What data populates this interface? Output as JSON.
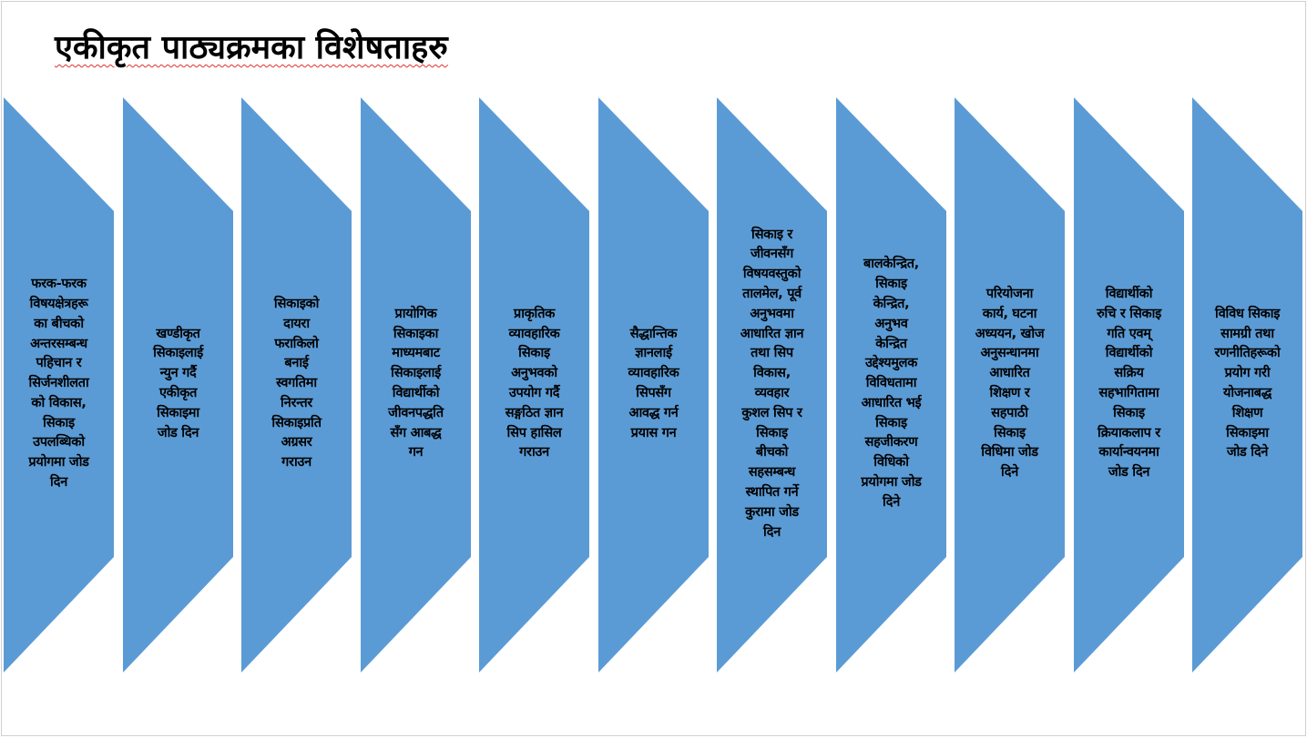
{
  "title": "एकीकृत पाठ्यक्रमका विशेषताहरु",
  "colors": {
    "shape_fill": "#5b9bd5",
    "text": "#000000",
    "spellcheck_underline": "#e03030"
  },
  "items": [
    {
      "lines": [
        "फरक-फरक",
        "विषयक्षेत्रहरू",
        "का बीचको",
        "अन्तरसम्बन्ध",
        "पहिचान र",
        "सिर्जनशीलता",
        "को विकास,",
        "सिकाइ",
        "उपलब्धिको",
        "प्रयोगमा जोड",
        "दिन"
      ]
    },
    {
      "lines": [
        "खण्डीकृत",
        "सिकाइलाई",
        "न्युन गर्दै",
        "एकीकृत",
        "सिकाइमा",
        "जोड दिन"
      ]
    },
    {
      "lines": [
        "सिकाइको",
        "दायरा",
        "फराकिलो",
        "बनाई",
        "स्वगतिमा",
        "निरन्तर",
        "सिकाइप्रति",
        "अग्रसर",
        "गराउन"
      ]
    },
    {
      "lines": [
        "प्रायोगिक",
        "सिकाइका",
        "माध्यमबाट",
        "सिकाइलाई",
        "विद्यार्थीको",
        "जीवनपद्धति",
        "सँग आबद्ध",
        "गन"
      ]
    },
    {
      "lines": [
        "प्राकृतिक",
        "व्यावहारिक",
        "सिकाइ",
        "अनुभवको",
        "उपयोग गर्दै",
        "सङ्गठित ज्ञान",
        "सिप हासिल",
        "गराउन"
      ]
    },
    {
      "lines": [
        "सैद्धान्तिक",
        "ज्ञानलाई",
        "व्यावहारिक",
        "सिपसँग",
        "आवद्ध गर्न",
        "प्रयास गन"
      ]
    },
    {
      "lines": [
        "सिकाइ र",
        "जीवनसँग",
        "विषयवस्तुको",
        "तालमेल, पूर्व",
        "अनुभवमा",
        "आधारित ज्ञान",
        "तथा सिप",
        "विकास,",
        "व्यवहार",
        "कुशल सिप र",
        "सिकाइ",
        "बीचको",
        "सहसम्बन्ध",
        "स्थापित गर्ने",
        "कुरामा जोड",
        "दिन"
      ]
    },
    {
      "lines": [
        "बालकेन्द्रित,",
        "सिकाइ",
        "केन्द्रित,",
        "अनुभव",
        "केन्द्रित",
        "उद्देश्यमुलक",
        "विविधतामा",
        "आधारित भई",
        "सिकाइ",
        "सहजीकरण",
        "विधिको",
        "प्रयोगमा जोड",
        "दिने"
      ]
    },
    {
      "lines": [
        "परियोजना",
        "कार्य, घटना",
        "अध्ययन, खोज",
        "अनुसन्धानमा",
        "आधारित",
        "शिक्षण र",
        "सहपाठी",
        "सिकाइ",
        "विधिमा जोड",
        "दिने"
      ]
    },
    {
      "lines": [
        "विद्यार्थीको",
        "रुचि र सिकाइ",
        "गति एवम्",
        "विद्यार्थीको",
        "सक्रिय",
        "सहभागितामा",
        "सिकाइ",
        "क्रियाकलाप र",
        "कार्यान्वयनमा",
        "जोड दिन"
      ]
    },
    {
      "lines": [
        "विविध सिकाइ",
        "सामग्री तथा",
        "रणनीतिहरूको",
        "प्रयोग गरी",
        "योजनाबद्ध",
        "शिक्षण",
        "सिकाइमा",
        "जोड दिने"
      ]
    }
  ]
}
